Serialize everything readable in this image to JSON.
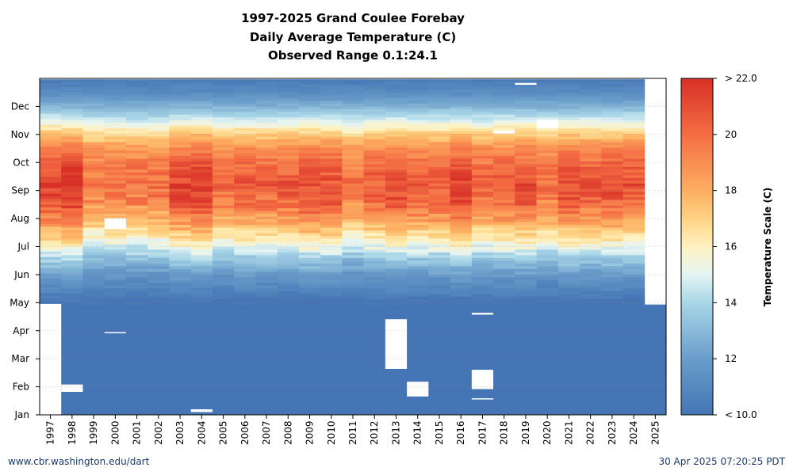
{
  "chart_data": {
    "type": "heatmap",
    "title": [
      "1997-2025 Grand Coulee Forebay",
      "Daily Average Temperature (C)",
      "Observed Range 0.1:24.1"
    ],
    "x_categories": [
      "1997",
      "1998",
      "1999",
      "2000",
      "2001",
      "2002",
      "2003",
      "2004",
      "2005",
      "2006",
      "2007",
      "2008",
      "2009",
      "2010",
      "2011",
      "2012",
      "2013",
      "2014",
      "2015",
      "2016",
      "2017",
      "2018",
      "2019",
      "2020",
      "2021",
      "2022",
      "2023",
      "2024",
      "2025"
    ],
    "y_months": [
      "Jan",
      "Feb",
      "Mar",
      "Apr",
      "May",
      "Jun",
      "Jul",
      "Aug",
      "Sep",
      "Oct",
      "Nov",
      "Dec"
    ],
    "value": "daily average temperature (C), colour scale 10 to 22 clipped",
    "season_profile": {
      "day_of_year": [
        0,
        120,
        150,
        170,
        182,
        195,
        210,
        230,
        250,
        270,
        290,
        305,
        320,
        335,
        350,
        366
      ],
      "temperature_c": [
        9.5,
        9.8,
        11.5,
        13.3,
        14.8,
        16.2,
        17.8,
        19.5,
        20.2,
        19.8,
        18.7,
        17.0,
        14.8,
        12.8,
        11.2,
        10.2
      ]
    },
    "year_offsets": [
      1.5,
      2.0,
      -0.6,
      -0.2,
      -0.4,
      -0.3,
      1.2,
      1.6,
      0.0,
      0.5,
      0.3,
      0.5,
      1.1,
      0.8,
      -0.5,
      0.4,
      1.0,
      0.6,
      0.6,
      1.4,
      0.2,
      0.7,
      0.9,
      -0.4,
      0.9,
      0.6,
      0.9,
      0.8,
      0.0
    ],
    "record_range": {
      "1997": [
        121,
        365
      ],
      "2025": [
        0,
        120
      ]
    },
    "missing_days": [
      {
        "year": "1998",
        "from": 25,
        "to": 33
      },
      {
        "year": "2000",
        "from": 89,
        "to": 90
      },
      {
        "year": "2000",
        "from": 202,
        "to": 214
      },
      {
        "year": "2004",
        "from": 3,
        "to": 6
      },
      {
        "year": "2013",
        "from": 50,
        "to": 104
      },
      {
        "year": "2014",
        "from": 20,
        "to": 36
      },
      {
        "year": "2017",
        "from": 28,
        "to": 49
      },
      {
        "year": "2017",
        "from": 17,
        "to": 18
      },
      {
        "year": "2017",
        "from": 109,
        "to": 111
      },
      {
        "year": "2018",
        "from": 306,
        "to": 309
      },
      {
        "year": "2019",
        "from": 359,
        "to": 361
      },
      {
        "year": "2020",
        "from": 312,
        "to": 321
      }
    ],
    "colorbar": {
      "label": "Temperature Scale (C)",
      "min": 10,
      "max": 22,
      "ticks": [
        "> 22.0",
        "20",
        "18",
        "16",
        "14",
        "12",
        "< 10.0"
      ],
      "tick_values": [
        22,
        20,
        18,
        16,
        14,
        12,
        10
      ]
    },
    "grid": true
  },
  "footer": {
    "left": "www.cbr.washington.edu/dart",
    "right": "30 Apr 2025 07:20:25 PDT"
  },
  "colors": {
    "cold": "#4575b4",
    "hot": "#d73027",
    "missing": "#ffffff",
    "frame": "#000000",
    "footer_text": "#1a3b6e"
  }
}
